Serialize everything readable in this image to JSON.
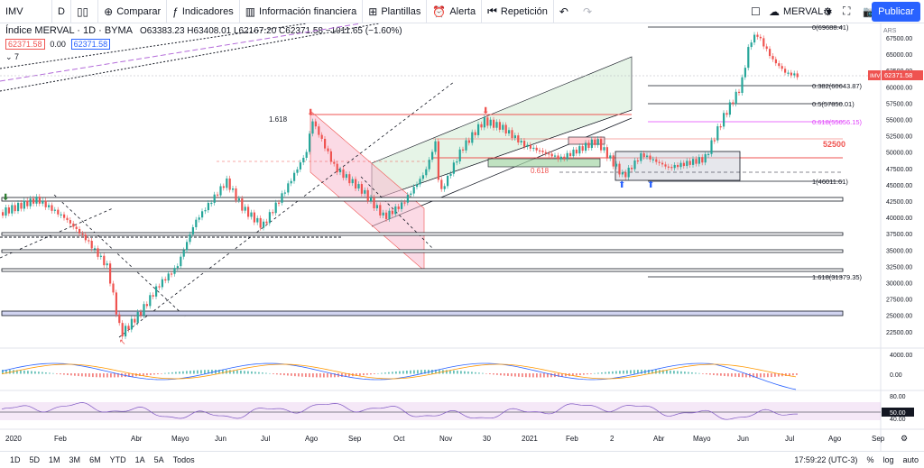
{
  "toolbar": {
    "symbol": "IMV",
    "interval": "D",
    "compare": "Comparar",
    "indicators": "Indicadores",
    "financials": "Información financiera",
    "templates": "Plantillas",
    "alert": "Alerta",
    "replay": "Repetición",
    "layout_name": "MERVAL",
    "publish": "Publicar"
  },
  "legend": {
    "title": "Índice MERVAL · 1D · BYMA",
    "ohlc": "O63383.23 H63408.01 L62167.20 C62371.58 −1011.65 (−1.60%)",
    "price_box_1": "62371.58",
    "spread": "0.00",
    "price_box_2": "62371.58",
    "study_count": "7"
  },
  "price_axis": {
    "currency": "ARS",
    "ticks": [
      "67500.00",
      "65000.00",
      "62500.00",
      "60000.00",
      "57500.00",
      "55000.00",
      "52500.00",
      "50000.00",
      "47500.00",
      "45000.00",
      "42500.00",
      "40000.00",
      "37500.00",
      "35000.00",
      "32500.00",
      "30000.00",
      "27500.00",
      "25000.00",
      "22500.00"
    ],
    "symbol_tag": "IMV",
    "last_price": "62371.58"
  },
  "time_axis": [
    "2020",
    "Feb",
    "Abr",
    "Mayo",
    "Jun",
    "Jul",
    "Ago",
    "Sep",
    "Oct",
    "Nov",
    "30",
    "2021",
    "Feb",
    "2",
    "Abr",
    "Mayo",
    "Jun",
    "Jul",
    "Ago",
    "Sep"
  ],
  "fib_labels": {
    "top": "0(69688.41)",
    "f382": "0.382(60643.87)",
    "f5": "0.5(57850.01)",
    "f618": "0.618(55056.15)",
    "one": "1(46011.61)",
    "ext": "1.618(31379.35)",
    "left_1618": "1.618",
    "small_618": "0.618",
    "level_52500": "52500"
  },
  "indicator_axes": {
    "macd_4000": "4000.00",
    "macd_0": "0.00",
    "rsi_80": "80.00",
    "rsi_50": "50.00",
    "rsi_40": "40.00"
  },
  "bottom_bar": {
    "ranges": [
      "1D",
      "5D",
      "1M",
      "3M",
      "6M",
      "YTD",
      "1A",
      "5A",
      "Todos"
    ],
    "time": "17:59:22 (UTC-3)",
    "pct": "%",
    "log": "log",
    "auto": "auto"
  },
  "colors": {
    "up": "#26a69a",
    "down": "#ef5350",
    "accent": "#2962ff",
    "fib_pink": "#e040fb"
  }
}
